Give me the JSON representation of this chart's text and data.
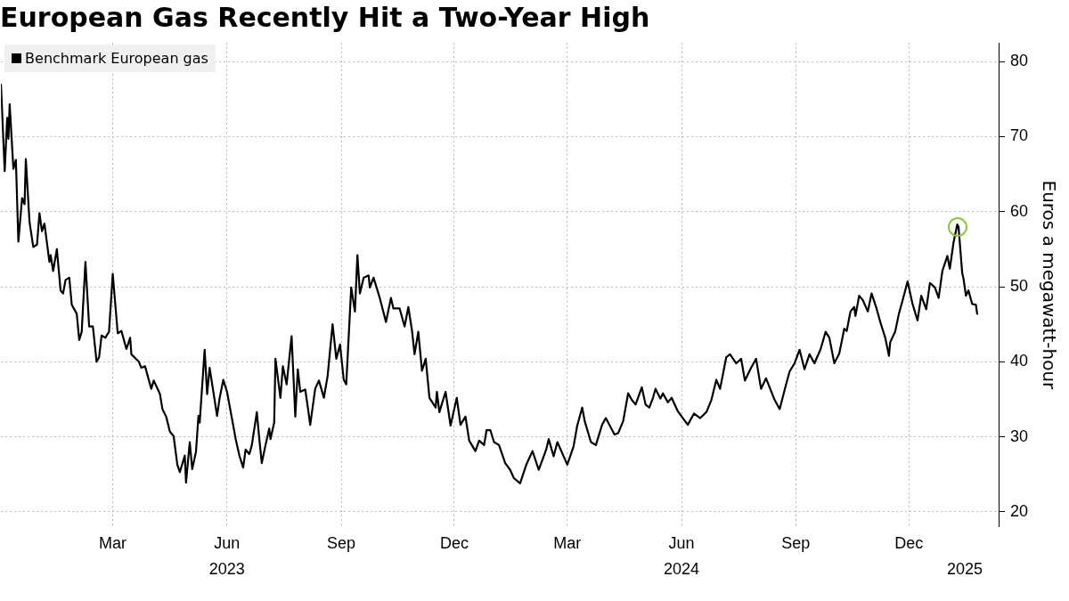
{
  "chart_data": {
    "type": "line",
    "title": "European Gas Recently Hit a Two-Year High",
    "ylabel": "Euros a megawatt-hour",
    "x": [
      "2022-12-01",
      "2022-12-04",
      "2022-12-06",
      "2022-12-07",
      "2022-12-08",
      "2022-12-11",
      "2022-12-13",
      "2022-12-15",
      "2022-12-18",
      "2022-12-20",
      "2022-12-21",
      "2022-12-24",
      "2022-12-27",
      "2022-12-30",
      "2023-01-01",
      "2023-01-03",
      "2023-01-05",
      "2023-01-09",
      "2023-01-10",
      "2023-01-12",
      "2023-01-15",
      "2023-01-18",
      "2023-01-20",
      "2023-01-22",
      "2023-01-25",
      "2023-01-27",
      "2023-01-31",
      "2023-02-02",
      "2023-02-04",
      "2023-02-07",
      "2023-02-10",
      "2023-02-13",
      "2023-02-16",
      "2023-02-18",
      "2023-02-20",
      "2023-02-23",
      "2023-02-26",
      "2023-03-01",
      "2023-03-05",
      "2023-03-08",
      "2023-03-12",
      "2023-03-15",
      "2023-03-16",
      "2023-03-22",
      "2023-03-24",
      "2023-03-27",
      "2023-04-01",
      "2023-04-03",
      "2023-04-08",
      "2023-04-10",
      "2023-04-13",
      "2023-04-16",
      "2023-04-19",
      "2023-04-22",
      "2023-04-24",
      "2023-04-28",
      "2023-04-29",
      "2023-05-02",
      "2023-05-04",
      "2023-05-07",
      "2023-05-09",
      "2023-05-10",
      "2023-05-14",
      "2023-05-16",
      "2023-05-18",
      "2023-05-24",
      "2023-05-26",
      "2023-05-29",
      "2023-06-01",
      "2023-06-04",
      "2023-06-08",
      "2023-06-11",
      "2023-06-14",
      "2023-06-16",
      "2023-06-19",
      "2023-06-21",
      "2023-06-25",
      "2023-06-27",
      "2023-06-29",
      "2023-07-02",
      "2023-07-05",
      "2023-07-06",
      "2023-07-09",
      "2023-07-10",
      "2023-07-14",
      "2023-07-16",
      "2023-07-19",
      "2023-07-23",
      "2023-07-26",
      "2023-07-28",
      "2023-07-30",
      "2023-08-03",
      "2023-08-05",
      "2023-08-07",
      "2023-08-11",
      "2023-08-14",
      "2023-08-18",
      "2023-08-21",
      "2023-08-25",
      "2023-08-28",
      "2023-08-31",
      "2023-09-03",
      "2023-09-05",
      "2023-09-09",
      "2023-09-12",
      "2023-09-14",
      "2023-09-16",
      "2023-09-19",
      "2023-09-23",
      "2023-09-24",
      "2023-09-27",
      "2023-10-02",
      "2023-10-07",
      "2023-10-11",
      "2023-10-13",
      "2023-10-18",
      "2023-10-22",
      "2023-10-25",
      "2023-10-28",
      "2023-10-30",
      "2023-11-02",
      "2023-11-05",
      "2023-11-08",
      "2023-11-11",
      "2023-11-16",
      "2023-11-17",
      "2023-11-19",
      "2023-11-24",
      "2023-11-28",
      "2023-12-03",
      "2023-12-06",
      "2023-12-10",
      "2023-12-13",
      "2023-12-18",
      "2023-12-21",
      "2023-12-25",
      "2023-12-27",
      "2023-12-30",
      "2024-01-02",
      "2024-01-06",
      "2024-01-11",
      "2024-01-15",
      "2024-01-18",
      "2024-01-23",
      "2024-01-28",
      "2024-02-02",
      "2024-02-07",
      "2024-02-13",
      "2024-02-15",
      "2024-02-19",
      "2024-02-22",
      "2024-03-01",
      "2024-03-06",
      "2024-03-09",
      "2024-03-13",
      "2024-03-15",
      "2024-03-20",
      "2024-03-24",
      "2024-03-29",
      "2024-04-01",
      "2024-04-08",
      "2024-04-11",
      "2024-04-15",
      "2024-04-19",
      "2024-04-22",
      "2024-04-25",
      "2024-04-30",
      "2024-05-03",
      "2024-05-06",
      "2024-05-09",
      "2024-05-11",
      "2024-05-15",
      "2024-05-17",
      "2024-05-21",
      "2024-05-24",
      "2024-05-29",
      "2024-06-06",
      "2024-06-11",
      "2024-06-16",
      "2024-06-21",
      "2024-06-25",
      "2024-06-29",
      "2024-07-02",
      "2024-07-07",
      "2024-07-10",
      "2024-07-15",
      "2024-07-19",
      "2024-07-22",
      "2024-07-27",
      "2024-07-31",
      "2024-08-04",
      "2024-08-08",
      "2024-08-15",
      "2024-08-19",
      "2024-08-24",
      "2024-08-27",
      "2024-08-31",
      "2024-09-04",
      "2024-09-08",
      "2024-09-12",
      "2024-09-16",
      "2024-09-21",
      "2024-09-25",
      "2024-09-28",
      "2024-10-02",
      "2024-10-06",
      "2024-10-10",
      "2024-10-12",
      "2024-10-15",
      "2024-10-18",
      "2024-10-19",
      "2024-10-22",
      "2024-10-25",
      "2024-10-29",
      "2024-11-01",
      "2024-11-05",
      "2024-11-08",
      "2024-11-12",
      "2024-11-15",
      "2024-11-16",
      "2024-11-20",
      "2024-11-23",
      "2024-11-26",
      "2024-11-30",
      "2024-12-04",
      "2024-12-08",
      "2024-12-11",
      "2024-12-15",
      "2024-12-18",
      "2024-12-22",
      "2024-12-25",
      "2024-12-28",
      "2025-01-01",
      "2025-01-03",
      "2025-01-06",
      "2025-01-09",
      "2025-01-10",
      "2025-01-13",
      "2025-01-14",
      "2025-01-16",
      "2025-01-18",
      "2025-01-21",
      "2025-01-24",
      "2025-01-25"
    ],
    "series": [
      {
        "name": "Benchmark European gas",
        "color": "#000000",
        "values": [
          76.9,
          65.4,
          72.5,
          69.7,
          74.3,
          65.7,
          66.9,
          56.0,
          61.8,
          61.0,
          67.0,
          58.6,
          55.3,
          55.6,
          59.8,
          57.4,
          58.4,
          53.3,
          54.2,
          52.1,
          55.0,
          49.5,
          49.1,
          50.9,
          51.2,
          47.6,
          46.4,
          42.9,
          44.0,
          53.3,
          44.7,
          44.7,
          40.0,
          40.6,
          43.5,
          43.2,
          44.0,
          51.7,
          43.8,
          44.1,
          41.7,
          43.2,
          41.0,
          40.0,
          39.2,
          39.4,
          36.4,
          37.5,
          35.7,
          33.7,
          32.7,
          30.7,
          30.1,
          26.3,
          25.3,
          27.5,
          23.9,
          29.3,
          25.7,
          28.0,
          32.8,
          31.9,
          41.6,
          35.7,
          39.2,
          32.8,
          35.1,
          37.6,
          36.0,
          33.3,
          29.7,
          27.5,
          25.9,
          28.3,
          27.7,
          28.9,
          33.3,
          29.7,
          26.5,
          28.9,
          31.1,
          29.7,
          31.9,
          40.4,
          35.2,
          39.4,
          37.0,
          43.4,
          32.7,
          39.0,
          36.0,
          36.3,
          34.0,
          31.6,
          36.4,
          37.5,
          35.2,
          38.1,
          45.0,
          40.4,
          42.3,
          37.6,
          37.0,
          49.9,
          46.7,
          54.2,
          49.1,
          51.2,
          51.5,
          49.9,
          51.2,
          48.5,
          45.3,
          48.5,
          47.1,
          47.1,
          44.7,
          47.3,
          44.1,
          41.0,
          44.0,
          38.8,
          40.4,
          35.2,
          33.9,
          36.0,
          33.3,
          36.0,
          31.5,
          35.2,
          31.6,
          32.7,
          29.5,
          28.1,
          29.5,
          28.9,
          30.9,
          30.9,
          29.3,
          28.9,
          26.5,
          25.6,
          24.5,
          23.8,
          26.3,
          28.1,
          25.6,
          28.3,
          29.7,
          27.4,
          29.3,
          26.3,
          28.7,
          31.5,
          33.9,
          32.1,
          29.3,
          28.9,
          31.6,
          32.5,
          30.3,
          30.5,
          32.1,
          35.8,
          34.9,
          34.3,
          36.6,
          34.3,
          33.9,
          35.2,
          36.4,
          35.1,
          35.8,
          34.6,
          35.2,
          33.4,
          31.6,
          33.1,
          32.5,
          33.3,
          34.9,
          37.6,
          36.4,
          40.6,
          41.0,
          39.8,
          40.4,
          37.5,
          39.2,
          40.4,
          36.4,
          37.8,
          34.9,
          33.7,
          36.9,
          38.7,
          39.8,
          41.6,
          39.0,
          41.0,
          39.8,
          41.7,
          44.0,
          43.2,
          39.8,
          41.1,
          44.4,
          44.1,
          46.7,
          47.3,
          46.1,
          48.8,
          48.2,
          46.7,
          49.1,
          47.1,
          45.3,
          43.2,
          40.8,
          42.6,
          44.0,
          46.4,
          48.2,
          50.7,
          47.7,
          45.5,
          48.8,
          47.0,
          50.5,
          49.9,
          48.5,
          52.1,
          54.1,
          52.4,
          55.9,
          58.3,
          58.0,
          51.8,
          51.1,
          48.8,
          49.5,
          47.7,
          47.6,
          46.4
        ]
      }
    ],
    "xlim": [
      "2022-12-01",
      "2025-02-12"
    ],
    "xticks": [
      {
        "value": "2023-03-01",
        "label": "Mar"
      },
      {
        "value": "2023-06-01",
        "label": "Jun"
      },
      {
        "value": "2023-09-01",
        "label": "Sep"
      },
      {
        "value": "2023-12-01",
        "label": "Dec"
      },
      {
        "value": "2024-03-01",
        "label": "Mar"
      },
      {
        "value": "2024-06-01",
        "label": "Jun"
      },
      {
        "value": "2024-09-01",
        "label": "Sep"
      },
      {
        "value": "2024-12-01",
        "label": "Dec"
      }
    ],
    "x2lim": [
      "2022-12-01",
      "2025-02-12"
    ],
    "x2ticks": [
      {
        "value": "2023-06-01",
        "label": "2023"
      },
      {
        "value": "2024-06-01",
        "label": "2024"
      },
      {
        "value": "2025-01-15",
        "label": "2025"
      }
    ],
    "ylim": [
      18,
      82.5
    ],
    "yticks": [
      20,
      30,
      40,
      50,
      60,
      70,
      80
    ],
    "grid": true,
    "legend": "top left",
    "line_style": "solid",
    "marker": "none"
  }
}
